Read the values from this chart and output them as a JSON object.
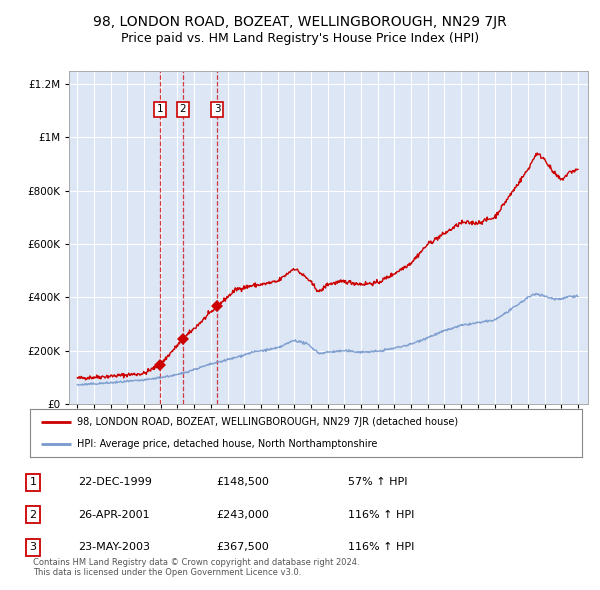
{
  "title": "98, LONDON ROAD, BOZEAT, WELLINGBOROUGH, NN29 7JR",
  "subtitle": "Price paid vs. HM Land Registry's House Price Index (HPI)",
  "title_fontsize": 10,
  "subtitle_fontsize": 9,
  "background_color": "#ffffff",
  "plot_bg_color": "#dce6f5",
  "red_line_color": "#cc0000",
  "blue_line_color": "#7799cc",
  "grid_color": "#ffffff",
  "sale_points": [
    {
      "year": 1999.97,
      "value": 148500,
      "label": "1"
    },
    {
      "year": 2001.32,
      "value": 243000,
      "label": "2"
    },
    {
      "year": 2003.39,
      "value": 367500,
      "label": "3"
    }
  ],
  "vline_years": [
    1999.97,
    2001.32,
    2003.39
  ],
  "legend_entries": [
    "98, LONDON ROAD, BOZEAT, WELLINGBOROUGH, NN29 7JR (detached house)",
    "HPI: Average price, detached house, North Northamptonshire"
  ],
  "table_data": [
    [
      "1",
      "22-DEC-1999",
      "£148,500",
      "57% ↑ HPI"
    ],
    [
      "2",
      "26-APR-2001",
      "£243,000",
      "116% ↑ HPI"
    ],
    [
      "3",
      "23-MAY-2003",
      "£367,500",
      "116% ↑ HPI"
    ]
  ],
  "footer_text": "Contains HM Land Registry data © Crown copyright and database right 2024.\nThis data is licensed under the Open Government Licence v3.0.",
  "ylim": [
    0,
    1250000
  ],
  "yticks": [
    0,
    200000,
    400000,
    600000,
    800000,
    1000000,
    1200000
  ],
  "ytick_labels": [
    "£0",
    "£200K",
    "£400K",
    "£600K",
    "£800K",
    "£1M",
    "£1.2M"
  ],
  "xmin": 1994.5,
  "xmax": 2025.6
}
